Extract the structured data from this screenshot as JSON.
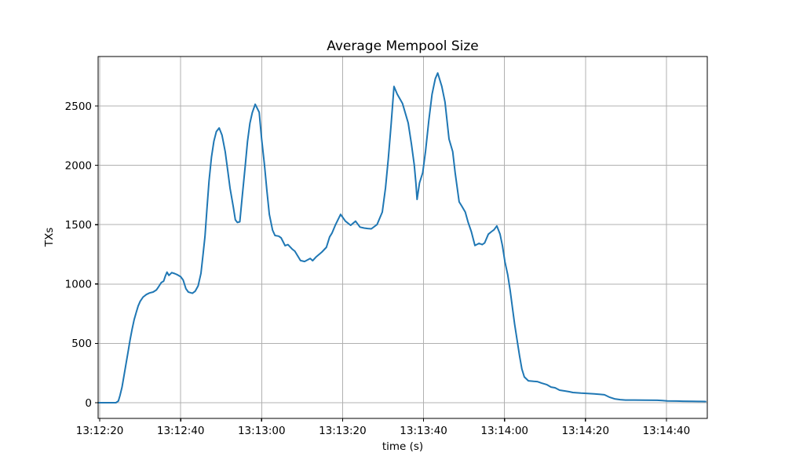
{
  "chart_data": {
    "type": "line",
    "title": "Average Mempool Size",
    "xlabel": "time (s)",
    "ylabel": "TXs",
    "x_unit": "seconds since 13:12:20",
    "x_tick_seconds": [
      0,
      20,
      40,
      60,
      80,
      100,
      120,
      140
    ],
    "x_tick_labels": [
      "13:12:20",
      "13:12:40",
      "13:13:00",
      "13:13:20",
      "13:13:40",
      "13:14:00",
      "13:14:20",
      "13:14:40"
    ],
    "y_ticks": [
      0,
      500,
      1000,
      1500,
      2000,
      2500
    ],
    "xlim_seconds": [
      -0.4,
      150.1
    ],
    "ylim": [
      -132,
      2917
    ],
    "grid": true,
    "legend": "none",
    "colors": {
      "line": "#1f77b4",
      "grid": "#b0b0b0",
      "spine": "#000000",
      "text": "#000000",
      "background": "#ffffff"
    },
    "series": [
      {
        "name": "Average Mempool Size",
        "points": [
          [
            -0.4,
            0
          ],
          [
            1,
            0
          ],
          [
            2,
            0
          ],
          [
            3,
            0
          ],
          [
            4,
            0
          ],
          [
            4.6,
            15
          ],
          [
            5,
            60
          ],
          [
            5.5,
            130
          ],
          [
            6,
            230
          ],
          [
            6.5,
            330
          ],
          [
            7,
            430
          ],
          [
            7.5,
            530
          ],
          [
            8,
            620
          ],
          [
            8.5,
            700
          ],
          [
            9,
            760
          ],
          [
            9.5,
            815
          ],
          [
            10,
            855
          ],
          [
            10.7,
            890
          ],
          [
            11.5,
            912
          ],
          [
            12.3,
            925
          ],
          [
            13.2,
            933
          ],
          [
            14,
            950
          ],
          [
            14.6,
            980
          ],
          [
            15.2,
            1012
          ],
          [
            15.8,
            1025
          ],
          [
            16.2,
            1067
          ],
          [
            16.6,
            1100
          ],
          [
            17.1,
            1073
          ],
          [
            17.8,
            1096
          ],
          [
            18.5,
            1088
          ],
          [
            19.2,
            1078
          ],
          [
            20,
            1062
          ],
          [
            20.6,
            1034
          ],
          [
            21.3,
            960
          ],
          [
            21.9,
            932
          ],
          [
            22.9,
            922
          ],
          [
            23.6,
            940
          ],
          [
            24.3,
            985
          ],
          [
            25,
            1090
          ],
          [
            25.5,
            1240
          ],
          [
            26,
            1400
          ],
          [
            26.5,
            1640
          ],
          [
            27,
            1870
          ],
          [
            27.6,
            2070
          ],
          [
            28.2,
            2205
          ],
          [
            28.8,
            2285
          ],
          [
            29.5,
            2315
          ],
          [
            30.2,
            2255
          ],
          [
            31,
            2115
          ],
          [
            31.6,
            1962
          ],
          [
            32.2,
            1806
          ],
          [
            33,
            1650
          ],
          [
            33.5,
            1541
          ],
          [
            34,
            1519
          ],
          [
            34.6,
            1525
          ],
          [
            35.2,
            1740
          ],
          [
            35.9,
            1982
          ],
          [
            36.5,
            2202
          ],
          [
            37.1,
            2356
          ],
          [
            37.7,
            2445
          ],
          [
            38.4,
            2515
          ],
          [
            39.4,
            2447
          ],
          [
            40,
            2222
          ],
          [
            40.7,
            2004
          ],
          [
            41.3,
            1786
          ],
          [
            41.9,
            1587
          ],
          [
            42.7,
            1455
          ],
          [
            43.3,
            1409
          ],
          [
            44.2,
            1404
          ],
          [
            44.8,
            1389
          ],
          [
            45.8,
            1323
          ],
          [
            46.5,
            1332
          ],
          [
            47.5,
            1296
          ],
          [
            48.2,
            1277
          ],
          [
            49.6,
            1198
          ],
          [
            50.6,
            1190
          ],
          [
            52,
            1215
          ],
          [
            52.6,
            1197
          ],
          [
            53.5,
            1230
          ],
          [
            54.9,
            1270
          ],
          [
            56,
            1310
          ],
          [
            56.8,
            1397
          ],
          [
            57.4,
            1430
          ],
          [
            58.2,
            1497
          ],
          [
            59.5,
            1587
          ],
          [
            60.7,
            1530
          ],
          [
            62,
            1495
          ],
          [
            63.2,
            1530
          ],
          [
            64.3,
            1480
          ],
          [
            65.3,
            1472
          ],
          [
            66.2,
            1468
          ],
          [
            67.1,
            1465
          ],
          [
            68.5,
            1501
          ],
          [
            69.8,
            1607
          ],
          [
            70.6,
            1810
          ],
          [
            71.3,
            2060
          ],
          [
            72,
            2350
          ],
          [
            72.7,
            2665
          ],
          [
            73.5,
            2600
          ],
          [
            74.8,
            2522
          ],
          [
            76.2,
            2357
          ],
          [
            77,
            2180
          ],
          [
            77.7,
            2004
          ],
          [
            78.1,
            1852
          ],
          [
            78.4,
            1713
          ],
          [
            79,
            1852
          ],
          [
            79.8,
            1938
          ],
          [
            80.5,
            2120
          ],
          [
            81.3,
            2380
          ],
          [
            82.1,
            2600
          ],
          [
            82.9,
            2730
          ],
          [
            83.5,
            2778
          ],
          [
            84.5,
            2665
          ],
          [
            85.3,
            2533
          ],
          [
            86.3,
            2222
          ],
          [
            87.2,
            2116
          ],
          [
            87.8,
            1938
          ],
          [
            88.8,
            1693
          ],
          [
            89.4,
            1660
          ],
          [
            90.3,
            1607
          ],
          [
            91,
            1521
          ],
          [
            91.8,
            1442
          ],
          [
            92.7,
            1325
          ],
          [
            93.7,
            1343
          ],
          [
            94.5,
            1332
          ],
          [
            95.1,
            1347
          ],
          [
            96,
            1420
          ],
          [
            96.8,
            1442
          ],
          [
            97.4,
            1457
          ],
          [
            98.1,
            1490
          ],
          [
            98.9,
            1420
          ],
          [
            99.5,
            1321
          ],
          [
            100.1,
            1188
          ],
          [
            100.8,
            1078
          ],
          [
            101.4,
            946
          ],
          [
            102,
            790
          ],
          [
            102.5,
            661
          ],
          [
            103.1,
            529
          ],
          [
            103.7,
            397
          ],
          [
            104.3,
            284
          ],
          [
            104.9,
            218
          ],
          [
            105.9,
            185
          ],
          [
            107.2,
            180
          ],
          [
            108.1,
            178
          ],
          [
            109.2,
            165
          ],
          [
            110.5,
            152
          ],
          [
            111.5,
            132
          ],
          [
            112.5,
            126
          ],
          [
            113.6,
            106
          ],
          [
            115,
            99
          ],
          [
            116,
            93
          ],
          [
            116.9,
            86
          ],
          [
            118.9,
            81
          ],
          [
            120.2,
            79
          ],
          [
            122.2,
            75
          ],
          [
            124.7,
            67
          ],
          [
            126,
            46
          ],
          [
            127.2,
            33
          ],
          [
            128.6,
            26
          ],
          [
            129.9,
            23
          ],
          [
            132,
            23
          ],
          [
            134.5,
            22
          ],
          [
            137.7,
            21
          ],
          [
            139,
            18
          ],
          [
            140.2,
            15
          ],
          [
            142.5,
            14
          ],
          [
            144.1,
            13
          ],
          [
            146.5,
            12
          ],
          [
            148.5,
            11
          ],
          [
            149.7,
            10
          ]
        ]
      }
    ]
  }
}
